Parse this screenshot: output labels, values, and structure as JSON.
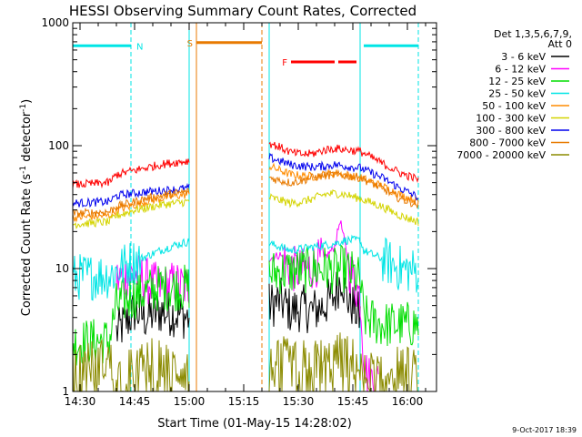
{
  "chart_data": {
    "type": "line",
    "title": "HESSI Observing Summary Count Rates, Corrected",
    "xlabel": "Start Time (01-May-15 14:28:02)",
    "ylabel_main": "Corrected Count Rate (s",
    "ylabel_sup1": "-1",
    "ylabel_mid": " detector",
    "ylabel_sup2": "-1",
    "ylabel_end": ")",
    "x_unit": "minutes after 14:28:02",
    "xlim": [
      0,
      100
    ],
    "ylim": [
      1,
      1000
    ],
    "y_scale": "log",
    "x_ticks": [
      {
        "at": 2,
        "label": "14:30"
      },
      {
        "at": 17,
        "label": "14:45"
      },
      {
        "at": 32,
        "label": "15:00"
      },
      {
        "at": 47,
        "label": "15:15"
      },
      {
        "at": 62,
        "label": "15:30"
      },
      {
        "at": 77,
        "label": "15:45"
      },
      {
        "at": 92,
        "label": "16:00"
      }
    ],
    "y_ticks": [
      {
        "at": 1,
        "label": "1"
      },
      {
        "at": 10,
        "label": "10"
      },
      {
        "at": 100,
        "label": "100"
      },
      {
        "at": 1000,
        "label": "1000"
      }
    ],
    "legend": {
      "placement": "right",
      "header1": "Det 1,3,5,6,7,9,",
      "header2": "Att 0"
    },
    "data_gaps": [
      [
        32,
        54
      ]
    ],
    "flags": [
      {
        "label": "N",
        "color": "#00e5e5",
        "segments": [
          [
            0,
            16
          ],
          [
            80,
            95
          ]
        ],
        "level": 650
      },
      {
        "label": "S",
        "color": "#e87a00",
        "segments": [
          [
            34,
            52
          ]
        ],
        "level": 690
      },
      {
        "label": "F",
        "color": "#ff0000",
        "segments": [
          [
            60,
            72
          ],
          [
            73,
            78
          ]
        ],
        "level": 480
      }
    ],
    "event_lines": [
      {
        "x": 16,
        "color": "#00e5e5",
        "style": "dashed"
      },
      {
        "x": 32,
        "color": "#00e5e5",
        "style": "solid"
      },
      {
        "x": 34,
        "color": "#e87a00",
        "style": "solid"
      },
      {
        "x": 52,
        "color": "#e87a00",
        "style": "dashed"
      },
      {
        "x": 54,
        "color": "#00e5e5",
        "style": "solid"
      },
      {
        "x": 79,
        "color": "#00e5e5",
        "style": "solid"
      },
      {
        "x": 95,
        "color": "#00e5e5",
        "style": "dashed"
      }
    ],
    "series": [
      {
        "name": "3 - 6 keV",
        "color": "#000000",
        "points": [
          [
            12,
            3.0
          ],
          [
            14,
            3.5
          ],
          [
            17,
            4.5
          ],
          [
            20,
            4.0
          ],
          [
            24,
            4.5
          ],
          [
            28,
            4.3
          ],
          [
            30,
            4.2
          ],
          [
            31.5,
            4.0
          ],
          [
            54,
            5.0
          ],
          [
            57,
            5.5
          ],
          [
            60,
            4.5
          ],
          [
            63,
            4.8
          ],
          [
            66,
            4.5
          ],
          [
            69,
            5.0
          ],
          [
            72,
            6.0
          ],
          [
            74,
            9.0
          ],
          [
            75,
            6.0
          ],
          [
            77,
            5.0
          ],
          [
            79,
            4.0
          ]
        ]
      },
      {
        "name": "6 - 12 keV",
        "color": "#ff00ff",
        "points": [
          [
            12,
            8.0
          ],
          [
            14,
            8.5
          ],
          [
            17,
            9.0
          ],
          [
            20,
            8.0
          ],
          [
            24,
            7.0
          ],
          [
            28,
            7.5
          ],
          [
            31.5,
            7.0
          ],
          [
            54,
            12.0
          ],
          [
            57,
            13.0
          ],
          [
            60,
            10.0
          ],
          [
            63,
            9.5
          ],
          [
            66,
            10.5
          ],
          [
            69,
            12.0
          ],
          [
            72,
            15.0
          ],
          [
            73.5,
            25.0
          ],
          [
            75,
            15.0
          ],
          [
            76,
            10.0
          ],
          [
            79,
            6.0
          ],
          [
            80,
            2.0
          ],
          [
            81,
            1.3
          ],
          [
            84,
            1.2
          ]
        ]
      },
      {
        "name": "12 - 25 keV",
        "color": "#00dd00",
        "points": [
          [
            0,
            2.5
          ],
          [
            10,
            2.6
          ],
          [
            12,
            5.0
          ],
          [
            14,
            5.5
          ],
          [
            17,
            6.0
          ],
          [
            20,
            6.5
          ],
          [
            24,
            7.0
          ],
          [
            28,
            7.0
          ],
          [
            31.5,
            7.0
          ],
          [
            54,
            9.0
          ],
          [
            57,
            9.5
          ],
          [
            60,
            9.5
          ],
          [
            63,
            9.7
          ],
          [
            66,
            9.8
          ],
          [
            69,
            10.0
          ],
          [
            72,
            9.5
          ],
          [
            74,
            10.0
          ],
          [
            77,
            9.0
          ],
          [
            79,
            8.0
          ],
          [
            80,
            4.0
          ],
          [
            85,
            3.5
          ],
          [
            95,
            3.5
          ]
        ]
      },
      {
        "name": "25 - 50 keV",
        "color": "#00e5e5",
        "points": [
          [
            0,
            8.5
          ],
          [
            10,
            8.8
          ],
          [
            12,
            9.5
          ],
          [
            14,
            10.5
          ],
          [
            17,
            11.5
          ],
          [
            20,
            12.5
          ],
          [
            24,
            14.0
          ],
          [
            28,
            15.5
          ],
          [
            31.5,
            16.5
          ],
          [
            54,
            16.0
          ],
          [
            57,
            15.0
          ],
          [
            60,
            14.0
          ],
          [
            63,
            14.5
          ],
          [
            66,
            15.0
          ],
          [
            69,
            15.5
          ],
          [
            72,
            16.0
          ],
          [
            75,
            17.0
          ],
          [
            79,
            17.0
          ],
          [
            80,
            14.0
          ],
          [
            85,
            12.0
          ],
          [
            90,
            10.0
          ],
          [
            95,
            9.5
          ]
        ]
      },
      {
        "name": "50 - 100 keV",
        "color": "#ff8c00",
        "points": [
          [
            0,
            26.0
          ],
          [
            10,
            27.0
          ],
          [
            12,
            30.0
          ],
          [
            14,
            31.0
          ],
          [
            17,
            33.0
          ],
          [
            20,
            35.0
          ],
          [
            24,
            37.0
          ],
          [
            28,
            39.0
          ],
          [
            31.5,
            40.0
          ],
          [
            54,
            68.0
          ],
          [
            57,
            63.0
          ],
          [
            60,
            58.0
          ],
          [
            63,
            57.0
          ],
          [
            66,
            56.0
          ],
          [
            69,
            58.0
          ],
          [
            72,
            60.0
          ],
          [
            75,
            58.0
          ],
          [
            79,
            55.0
          ],
          [
            85,
            47.0
          ],
          [
            90,
            40.0
          ],
          [
            95,
            35.0
          ]
        ]
      },
      {
        "name": "100 - 300 keV",
        "color": "#d4d400",
        "points": [
          [
            0,
            23.0
          ],
          [
            10,
            24.0
          ],
          [
            12,
            27.0
          ],
          [
            14,
            28.0
          ],
          [
            17,
            30.0
          ],
          [
            20,
            31.0
          ],
          [
            24,
            33.0
          ],
          [
            28,
            34.0
          ],
          [
            31.5,
            35.0
          ],
          [
            54,
            38.0
          ],
          [
            57,
            36.0
          ],
          [
            60,
            34.0
          ],
          [
            63,
            35.0
          ],
          [
            66,
            37.0
          ],
          [
            69,
            40.0
          ],
          [
            72,
            41.0
          ],
          [
            75,
            40.0
          ],
          [
            79,
            37.0
          ],
          [
            85,
            32.0
          ],
          [
            90,
            27.0
          ],
          [
            95,
            24.0
          ]
        ]
      },
      {
        "name": "300 - 800 keV",
        "color": "#0000ee",
        "points": [
          [
            0,
            34.0
          ],
          [
            10,
            35.0
          ],
          [
            12,
            39.0
          ],
          [
            14,
            40.0
          ],
          [
            17,
            41.0
          ],
          [
            20,
            42.0
          ],
          [
            24,
            43.0
          ],
          [
            28,
            44.0
          ],
          [
            31.5,
            45.0
          ],
          [
            54,
            80.0
          ],
          [
            57,
            75.0
          ],
          [
            60,
            70.0
          ],
          [
            63,
            68.0
          ],
          [
            66,
            67.0
          ],
          [
            69,
            68.0
          ],
          [
            72,
            70.0
          ],
          [
            75,
            68.0
          ],
          [
            79,
            66.0
          ],
          [
            85,
            55.0
          ],
          [
            90,
            45.0
          ],
          [
            95,
            38.0
          ]
        ]
      },
      {
        "name": "800 - 7000 keV",
        "color": "#e87a00",
        "points": [
          [
            0,
            28.0
          ],
          [
            10,
            29.0
          ],
          [
            12,
            32.0
          ],
          [
            14,
            33.0
          ],
          [
            17,
            35.0
          ],
          [
            20,
            37.0
          ],
          [
            24,
            39.0
          ],
          [
            28,
            41.0
          ],
          [
            31.5,
            42.0
          ],
          [
            54,
            55.0
          ],
          [
            57,
            52.0
          ],
          [
            60,
            50.0
          ],
          [
            63,
            52.0
          ],
          [
            66,
            55.0
          ],
          [
            69,
            57.0
          ],
          [
            72,
            58.0
          ],
          [
            75,
            57.0
          ],
          [
            79,
            55.0
          ],
          [
            85,
            45.0
          ],
          [
            90,
            37.0
          ],
          [
            95,
            33.0
          ]
        ]
      },
      {
        "name": "7000 - 20000 keV",
        "color": "#8b8b00",
        "points": [
          [
            0,
            1.8
          ],
          [
            5,
            1.7
          ],
          [
            10,
            1.8
          ],
          [
            12,
            1.3
          ],
          [
            17,
            1.5
          ],
          [
            22,
            1.8
          ],
          [
            26,
            1.6
          ],
          [
            31.5,
            1.5
          ],
          [
            54,
            1.5
          ],
          [
            58,
            1.8
          ],
          [
            62,
            1.6
          ],
          [
            66,
            1.9
          ],
          [
            70,
            1.7
          ],
          [
            74,
            2.0
          ],
          [
            78,
            1.7
          ],
          [
            80,
            1.3
          ],
          [
            85,
            1.5
          ],
          [
            90,
            1.6
          ],
          [
            95,
            1.4
          ]
        ]
      },
      {
        "name": "",
        "color": "#ff0000",
        "points": [
          [
            0,
            48.0
          ],
          [
            10,
            50.0
          ],
          [
            12,
            58.0
          ],
          [
            14,
            60.0
          ],
          [
            17,
            63.0
          ],
          [
            20,
            66.0
          ],
          [
            24,
            70.0
          ],
          [
            28,
            73.0
          ],
          [
            31.5,
            75.0
          ],
          [
            54,
            105.0
          ],
          [
            57,
            97.0
          ],
          [
            60,
            88.0
          ],
          [
            63,
            85.0
          ],
          [
            66,
            86.0
          ],
          [
            69,
            92.0
          ],
          [
            72,
            95.0
          ],
          [
            75,
            93.0
          ],
          [
            79,
            90.0
          ],
          [
            85,
            72.0
          ],
          [
            90,
            60.0
          ],
          [
            95,
            53.0
          ]
        ]
      }
    ]
  },
  "footer": {
    "timestamp": "9-Oct-2017 18:39"
  }
}
